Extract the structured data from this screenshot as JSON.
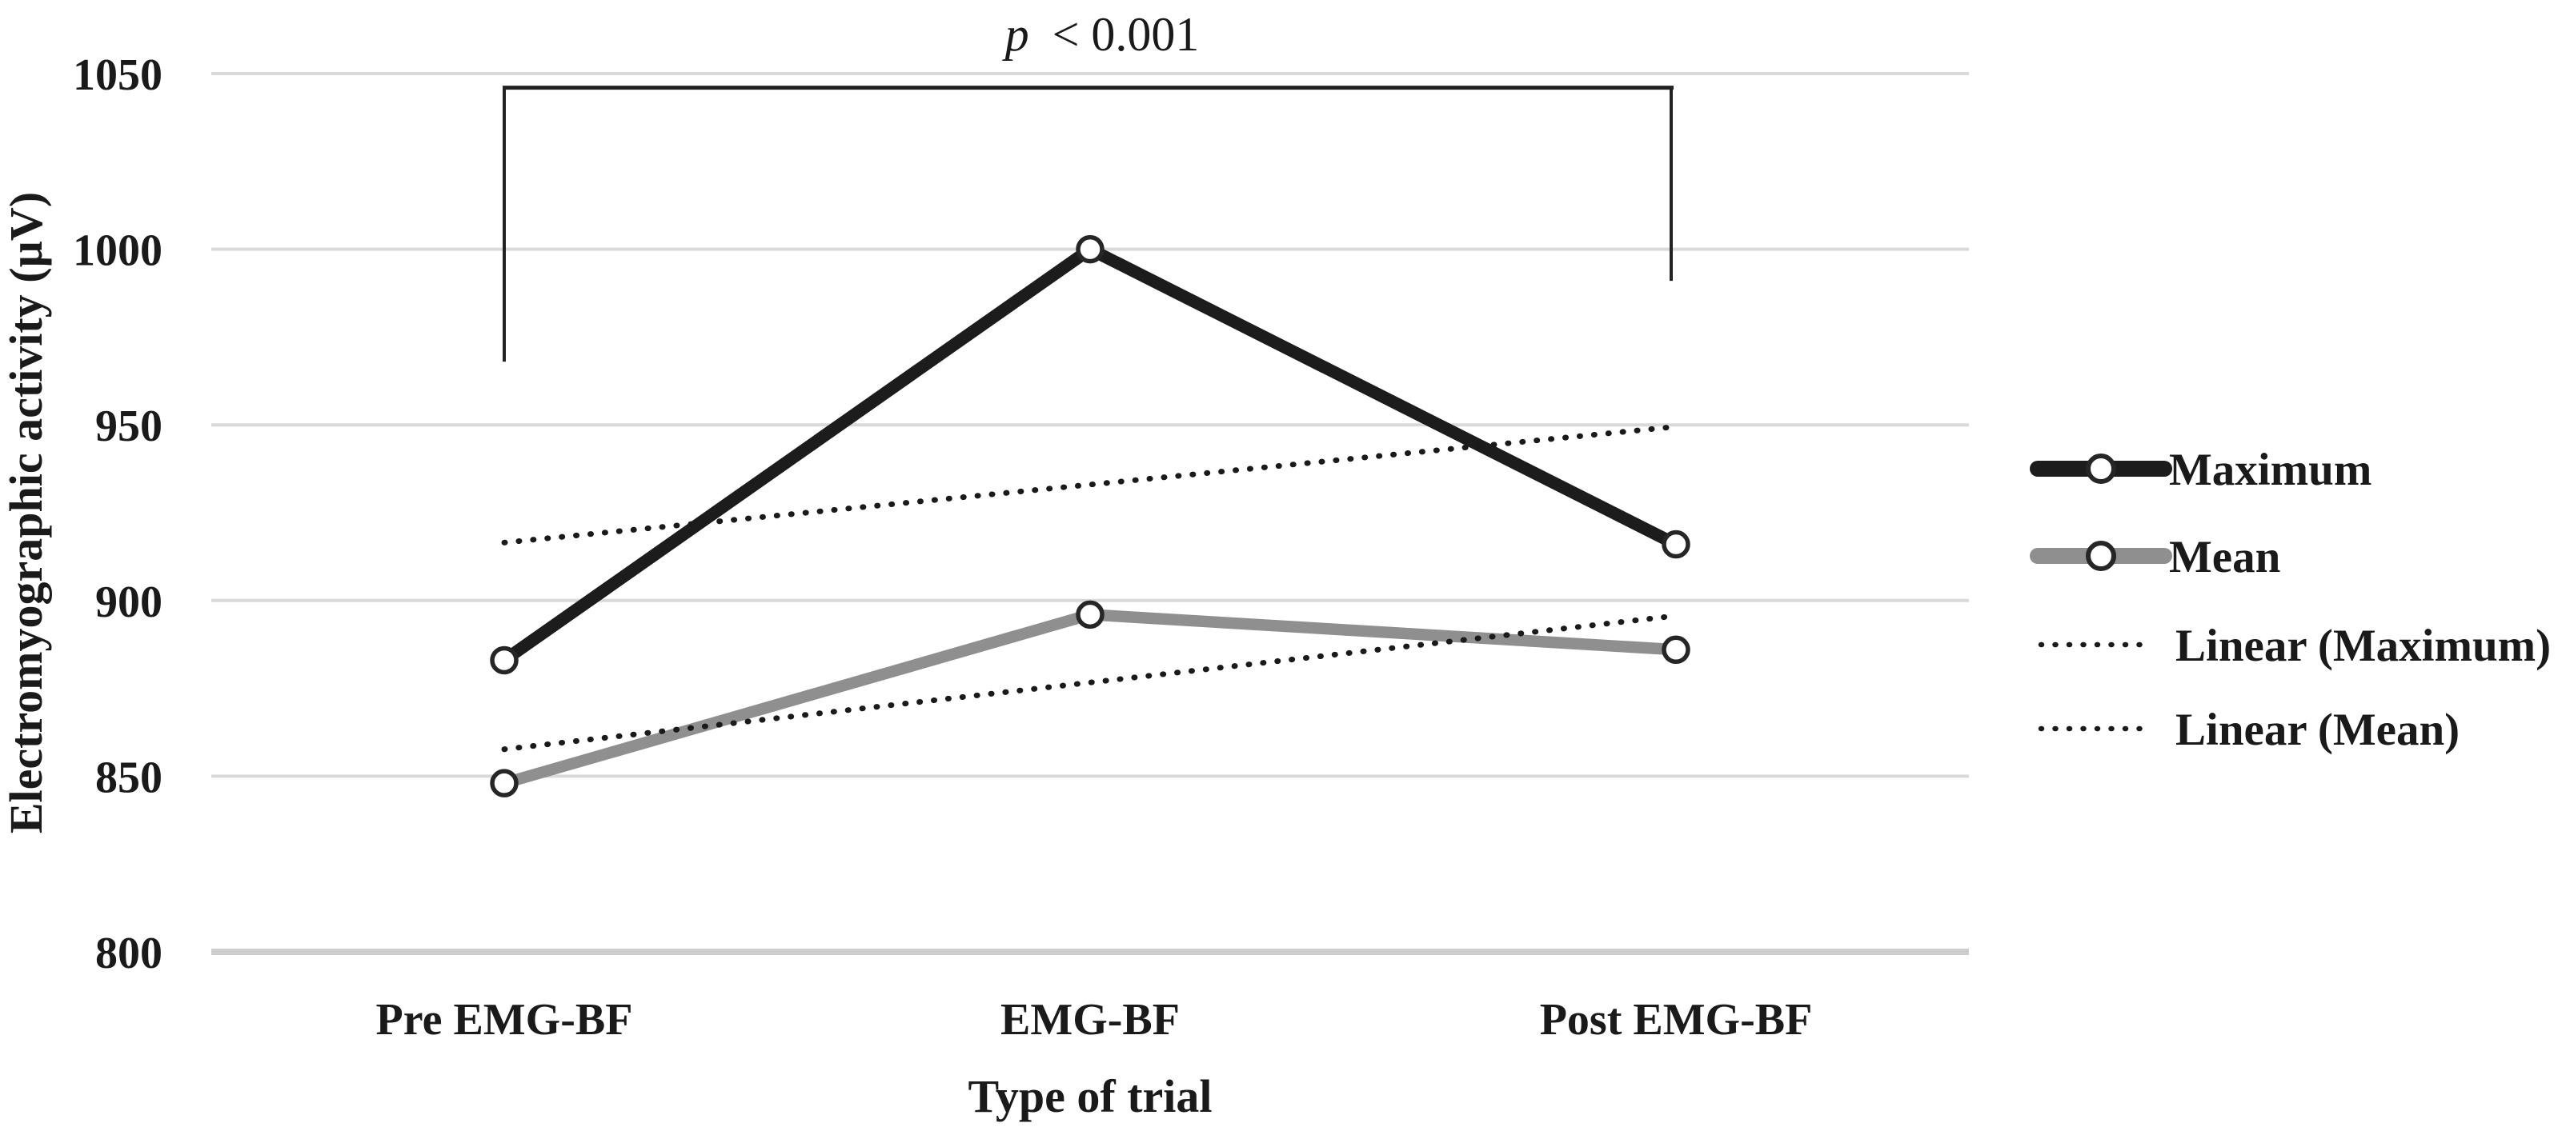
{
  "chart_data": {
    "type": "line",
    "categories": [
      "Pre EMG-BF",
      "EMG-BF",
      "Post EMG-BF"
    ],
    "series": [
      {
        "name": "Maximum",
        "values": [
          883,
          1000,
          916
        ],
        "color": "#1c1c1c",
        "marker": "open-circle"
      },
      {
        "name": "Mean",
        "values": [
          848,
          896,
          886
        ],
        "color": "#8f8f8f",
        "marker": "open-circle"
      }
    ],
    "trendlines": [
      {
        "name": "Linear (Maximum)",
        "series": "Maximum",
        "style": "dotted",
        "color": "#1a1a1a"
      },
      {
        "name": "Linear (Mean)",
        "series": "Mean",
        "style": "dotted",
        "color": "#1a1a1a"
      }
    ],
    "legend": {
      "position": "right",
      "entries": [
        "Maximum",
        "Mean",
        "Linear (Maximum)",
        "Linear (Mean)"
      ]
    },
    "xlabel": "Type of trial",
    "ylabel": "Electromyographic activity (µV)",
    "ylim": [
      800,
      1050
    ],
    "ytick_step": 50,
    "yticks": [
      1050,
      1000,
      950,
      900,
      850,
      800
    ],
    "grid": "horizontal-only",
    "annotation": {
      "text": "p < 0.001",
      "p_symbol": "p",
      "comparison": "< 0.001",
      "bracket": {
        "from_category": "Pre EMG-BF",
        "to_category": "Post EMG-BF",
        "top_value": 1046,
        "left_end_value": 968,
        "right_end_value": 991
      }
    },
    "colors": {
      "gridline": "#d9d9d9",
      "axis_line": "#cdcdcd",
      "marker_fill": "#ffffff",
      "marker_stroke": "#262626",
      "bracket": "#222222",
      "text": "#1a1a1a"
    }
  }
}
